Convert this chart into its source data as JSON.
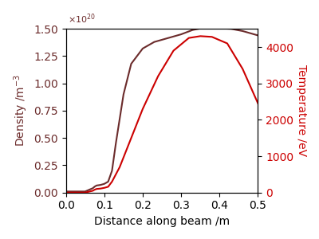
{
  "density_x": [
    0.0,
    0.05,
    0.07,
    0.075,
    0.08,
    0.09,
    0.1,
    0.105,
    0.11,
    0.12,
    0.13,
    0.15,
    0.17,
    0.2,
    0.23,
    0.27,
    0.3,
    0.33,
    0.36,
    0.4,
    0.43,
    0.46,
    0.5
  ],
  "density_y": [
    0.01,
    0.01,
    0.04,
    0.055,
    0.065,
    0.07,
    0.08,
    0.09,
    0.1,
    0.2,
    0.45,
    0.9,
    1.18,
    1.32,
    1.38,
    1.42,
    1.45,
    1.49,
    1.51,
    1.505,
    1.5,
    1.48,
    1.44
  ],
  "temp_x": [
    0.0,
    0.05,
    0.07,
    0.075,
    0.08,
    0.09,
    0.1,
    0.105,
    0.11,
    0.12,
    0.14,
    0.17,
    0.2,
    0.24,
    0.28,
    0.32,
    0.35,
    0.38,
    0.42,
    0.46,
    0.5
  ],
  "temp_y": [
    0,
    0,
    50,
    80,
    100,
    110,
    130,
    145,
    160,
    300,
    700,
    1500,
    2300,
    3200,
    3900,
    4250,
    4300,
    4280,
    4100,
    3400,
    2450
  ],
  "density_color": "#6b2b2b",
  "temp_color": "#cc0000",
  "ylabel_left": "Density /m$^{-3}$",
  "ylabel_right": "Temperature /eV",
  "xlabel": "Distance along beam /m",
  "xlim": [
    0.0,
    0.5
  ],
  "density_ylim": [
    0.0,
    1.5
  ],
  "temp_ylim": [
    0,
    4500
  ],
  "density_yticks": [
    0.0,
    0.25,
    0.5,
    0.75,
    1.0,
    1.25,
    1.5
  ],
  "temp_yticks": [
    0,
    1000,
    2000,
    3000,
    4000
  ],
  "xticks": [
    0.0,
    0.1,
    0.2,
    0.3,
    0.4,
    0.5
  ],
  "figsize": [
    4.0,
    3.0
  ],
  "dpi": 100
}
